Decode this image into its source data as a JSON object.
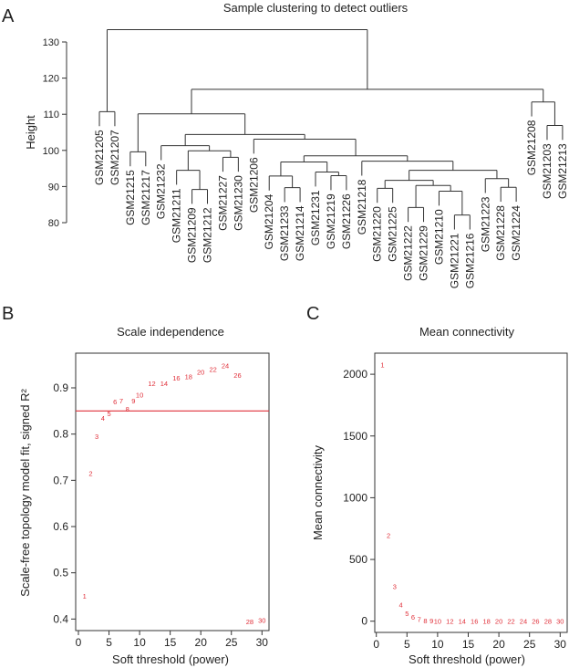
{
  "panel_labels": {
    "a": "A",
    "b": "B",
    "c": "C"
  },
  "chart_data": [
    {
      "type": "dendrogram",
      "title": "Sample clustering to detect outliers",
      "ylabel": "Height",
      "ylim": [
        80,
        135
      ],
      "yticks": [
        80,
        90,
        100,
        110,
        120,
        130
      ],
      "leaf_hang": 4,
      "tree": {
        "h": 133.4,
        "c": [
          {
            "h": 110.7,
            "c": [
              "GSM21205",
              "GSM21207"
            ]
          },
          {
            "h": 116.9,
            "c": [
              {
                "h": 110.1,
                "c": [
                  {
                    "h": 99.6,
                    "c": [
                      "GSM21215",
                      "GSM21217"
                    ]
                  },
                  {
                    "h": 104.4,
                    "c": [
                      {
                        "h": 101.3,
                        "c": [
                          "GSM21232",
                          {
                            "h": 99.9,
                            "c": [
                              {
                                "h": 94.5,
                                "c": [
                                  "GSM21211",
                                  {
                                    "h": 89.2,
                                    "c": [
                                      "GSM21209",
                                      "GSM21212"
                                    ]
                                  }
                                ]
                              },
                              {
                                "h": 98.1,
                                "c": [
                                  "GSM21227",
                                  "GSM21230"
                                ]
                              }
                            ]
                          }
                        ]
                      },
                      {
                        "h": 103.1,
                        "c": [
                          "GSM21206",
                          {
                            "h": 98.5,
                            "c": [
                              {
                                "h": 96.8,
                                "c": [
                                  {
                                    "h": 92.9,
                                    "c": [
                                      "GSM21204",
                                      {
                                        "h": 89.7,
                                        "c": [
                                          "GSM21233",
                                          "GSM21214"
                                        ]
                                      }
                                    ]
                                  },
                                  {
                                    "h": 94.0,
                                    "c": [
                                      "GSM21231",
                                      {
                                        "h": 93.0,
                                        "c": [
                                          "GSM21219",
                                          "GSM21226"
                                        ]
                                      }
                                    ]
                                  }
                                ]
                              },
                              {
                                "h": 97.0,
                                "c": [
                                  "GSM21218",
                                  {
                                    "h": 94.5,
                                    "c": [
                                      {
                                        "h": 91.7,
                                        "c": [
                                          {
                                            "h": 89.5,
                                            "c": [
                                              "GSM21220",
                                              "GSM21225"
                                            ]
                                          },
                                          {
                                            "h": 90.3,
                                            "c": [
                                              {
                                                "h": 84.2,
                                                "c": [
                                                  "GSM21222",
                                                  "GSM21229"
                                                ]
                                              },
                                              {
                                                "h": 88.7,
                                                "c": [
                                                  "GSM21210",
                                                  {
                                                    "h": 82.1,
                                                    "c": [
                                                      "GSM21221",
                                                      "GSM21216"
                                                    ]
                                                  }
                                                ]
                                              }
                                            ]
                                          }
                                        ]
                                      },
                                      {
                                        "h": 92.2,
                                        "c": [
                                          "GSM21223",
                                          {
                                            "h": 89.8,
                                            "c": [
                                              "GSM21228",
                                              "GSM21224"
                                            ]
                                          }
                                        ]
                                      }
                                    ]
                                  }
                                ]
                              }
                            ]
                          }
                        ]
                      }
                    ]
                  }
                ]
              },
              {
                "h": 113.4,
                "c": [
                  "GSM21208",
                  {
                    "h": 106.9,
                    "c": [
                      "GSM21203",
                      "GSM21213"
                    ]
                  }
                ]
              }
            ]
          }
        ]
      }
    },
    {
      "type": "scatter",
      "title": "Scale independence",
      "xlabel": "Soft threshold (power)",
      "ylabel": "Scale-free topology model fit, signed R²",
      "xlim": [
        0,
        30
      ],
      "ylim": [
        0.38,
        0.97
      ],
      "xticks": [
        0,
        5,
        10,
        15,
        20,
        25,
        30
      ],
      "yticks": [
        0.4,
        0.5,
        0.6,
        0.7,
        0.8,
        0.9
      ],
      "threshold_line": 0.85,
      "point_color": "#e0303a",
      "line_color": "#e0303a",
      "x": [
        1,
        2,
        3,
        4,
        5,
        6,
        7,
        8,
        9,
        10,
        12,
        14,
        16,
        18,
        20,
        22,
        24,
        26,
        28,
        30
      ],
      "y": [
        0.45,
        0.715,
        0.795,
        0.835,
        0.845,
        0.87,
        0.872,
        0.855,
        0.872,
        0.885,
        0.91,
        0.91,
        0.922,
        0.925,
        0.935,
        0.94,
        0.948,
        0.928,
        0.395,
        0.398
      ],
      "labels": [
        "1",
        "2",
        "3",
        "4",
        "5",
        "6",
        "7",
        "8",
        "9",
        "10",
        "12",
        "14",
        "16",
        "18",
        "20",
        "22",
        "24",
        "26",
        "28",
        "30"
      ]
    },
    {
      "type": "scatter",
      "title": "Mean connectivity",
      "xlabel": "Soft threshold (power)",
      "ylabel": "Mean connectivity",
      "xlim": [
        0,
        30
      ],
      "ylim": [
        -60,
        2200
      ],
      "xticks": [
        0,
        5,
        10,
        15,
        20,
        25,
        30
      ],
      "yticks": [
        0,
        500,
        1000,
        1500,
        2000
      ],
      "point_color": "#e0303a",
      "x": [
        1,
        2,
        3,
        4,
        5,
        6,
        7,
        8,
        9,
        10,
        12,
        14,
        16,
        18,
        20,
        22,
        24,
        26,
        28,
        30
      ],
      "y": [
        2079,
        695,
        283,
        133,
        66,
        34,
        17,
        6,
        4,
        2,
        1,
        1,
        0,
        0,
        0,
        0,
        0,
        0,
        0,
        0
      ],
      "labels": [
        "1",
        "2",
        "3",
        "4",
        "5",
        "6",
        "7",
        "8",
        "9",
        "10",
        "12",
        "14",
        "16",
        "18",
        "20",
        "22",
        "24",
        "26",
        "28",
        "30"
      ]
    }
  ]
}
